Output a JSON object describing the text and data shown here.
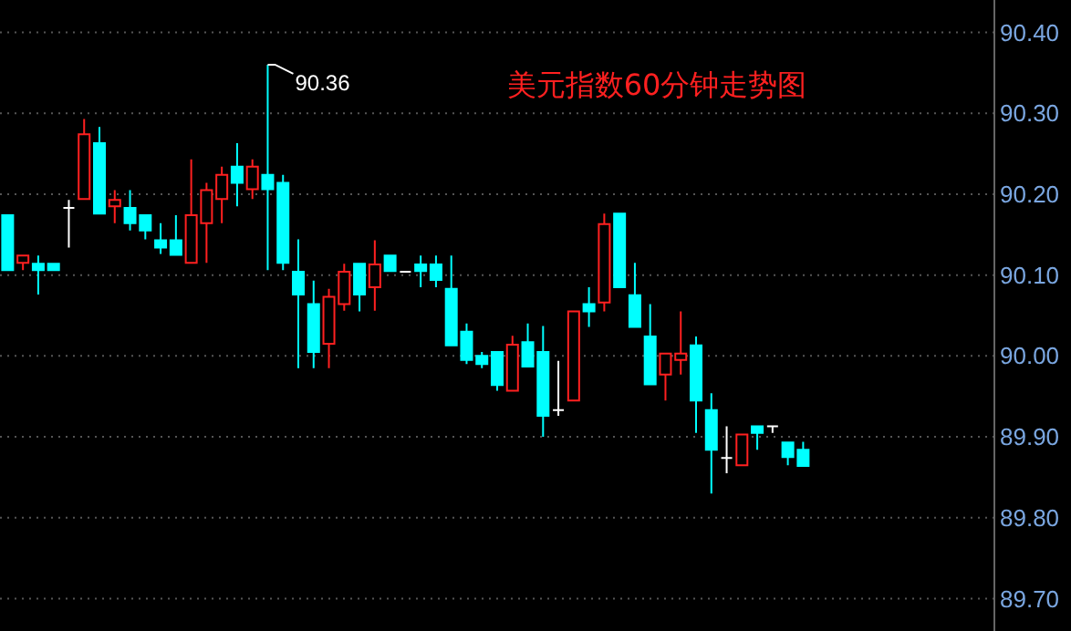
{
  "chart_data": {
    "type": "candlestick",
    "title": "美元指数60分钟走势图",
    "categories": [
      null,
      null,
      null,
      null,
      null,
      null,
      null,
      null,
      null,
      null,
      null,
      null,
      null,
      null,
      null,
      null,
      null,
      null,
      null,
      null,
      null,
      null,
      null,
      null,
      null,
      null,
      null,
      null,
      null,
      null,
      null,
      null,
      null,
      null,
      null,
      null,
      null,
      null,
      null,
      null,
      null,
      null,
      null,
      null,
      null,
      null,
      null,
      null,
      null,
      null,
      null,
      null,
      null,
      null,
      null,
      null,
      null,
      null,
      null,
      null,
      null,
      null,
      null,
      null,
      null
    ],
    "colors": [
      "#00ffff",
      "#ff2020",
      "#00ffff",
      "#00ffff",
      "#ffffff",
      "#ff2020",
      "#00ffff",
      "#ff2020",
      "#00ffff",
      "#00ffff",
      "#00ffff",
      "#00ffff",
      "#ff2020",
      "#ff2020",
      "#ff2020",
      "#00ffff",
      "#ff2020",
      "#00ffff",
      "#00ffff",
      "#00ffff",
      "#00ffff",
      "#ff2020",
      "#ff2020",
      "#00ffff",
      "#ff2020",
      "#00ffff",
      "#ffffff",
      "#00ffff",
      "#00ffff",
      "#00ffff",
      "#00ffff",
      "#00ffff",
      "#00ffff",
      "#ff2020",
      "#00ffff",
      "#00ffff",
      "#ffffff",
      "#ff2020",
      "#00ffff",
      "#ff2020",
      "#00ffff",
      "#00ffff",
      "#00ffff",
      "#ff2020",
      "#ff2020",
      "#00ffff",
      "#00ffff",
      "#ffffff",
      "#ff2020",
      "#00ffff",
      "#ffffff",
      "#00ffff",
      "#00ffff",
      null,
      null,
      null,
      null,
      null,
      null,
      null,
      null,
      null,
      null,
      null,
      null
    ],
    "ohlc": [
      [
        90.174,
        90.174,
        90.106,
        90.106
      ],
      [
        90.115,
        90.124,
        90.106,
        90.124
      ],
      [
        90.114,
        90.124,
        90.076,
        90.106
      ],
      [
        90.114,
        90.114,
        90.106,
        90.106
      ],
      [
        90.183,
        90.193,
        90.134,
        90.183
      ],
      [
        90.194,
        90.293,
        90.194,
        90.274
      ],
      [
        90.263,
        90.283,
        90.176,
        90.176
      ],
      [
        90.185,
        90.205,
        90.164,
        90.193
      ],
      [
        90.183,
        90.205,
        90.155,
        90.164
      ],
      [
        90.174,
        90.174,
        90.144,
        90.155
      ],
      [
        90.143,
        90.164,
        90.126,
        90.134
      ],
      [
        90.143,
        90.174,
        90.125,
        90.125
      ],
      [
        90.115,
        90.243,
        90.115,
        90.174
      ],
      [
        90.164,
        90.214,
        90.115,
        90.205
      ],
      [
        90.194,
        90.234,
        90.164,
        90.224
      ],
      [
        90.234,
        90.263,
        90.185,
        90.214
      ],
      [
        90.206,
        90.243,
        90.194,
        90.234
      ],
      [
        90.224,
        90.36,
        90.106,
        90.206
      ],
      [
        90.214,
        90.224,
        90.106,
        90.115
      ],
      [
        90.104,
        90.144,
        89.985,
        90.076
      ],
      [
        90.064,
        90.093,
        89.985,
        90.005
      ],
      [
        90.015,
        90.083,
        89.985,
        90.073
      ],
      [
        90.064,
        90.114,
        90.056,
        90.104
      ],
      [
        90.114,
        90.114,
        90.055,
        90.076
      ],
      [
        90.085,
        90.143,
        90.056,
        90.113
      ],
      [
        90.124,
        90.124,
        90.105,
        90.105
      ],
      [
        90.104,
        90.104,
        90.104,
        90.104
      ],
      [
        90.113,
        90.124,
        90.085,
        90.105
      ],
      [
        90.113,
        90.124,
        90.085,
        90.094
      ],
      [
        90.083,
        90.124,
        90.013,
        90.013
      ],
      [
        90.03,
        90.04,
        89.99,
        89.995
      ],
      [
        90.0,
        90.005,
        89.985,
        89.99
      ],
      [
        90.005,
        90.005,
        89.957,
        89.964
      ],
      [
        89.957,
        90.025,
        89.957,
        90.014
      ],
      [
        90.017,
        90.04,
        89.987,
        89.987
      ],
      [
        90.005,
        90.037,
        89.9,
        89.926
      ],
      [
        89.933,
        89.994,
        89.926,
        89.933
      ],
      [
        89.945,
        90.055,
        89.945,
        90.055
      ],
      [
        90.064,
        90.085,
        90.036,
        90.055
      ],
      [
        90.066,
        90.176,
        90.055,
        90.163
      ],
      [
        90.176,
        90.176,
        90.085,
        90.085
      ],
      [
        90.075,
        90.115,
        90.036,
        90.036
      ],
      [
        90.024,
        90.064,
        89.965,
        89.965
      ],
      [
        89.977,
        90.003,
        89.945,
        90.003
      ],
      [
        89.995,
        90.055,
        89.977,
        90.003
      ],
      [
        90.013,
        90.024,
        89.905,
        89.945
      ],
      [
        89.933,
        89.954,
        89.83,
        89.884
      ],
      [
        89.874,
        89.913,
        89.855,
        89.874
      ],
      [
        89.865,
        89.903,
        89.865,
        89.903
      ],
      [
        89.913,
        89.913,
        89.884,
        89.905
      ],
      [
        89.913,
        89.913,
        89.905,
        89.913
      ],
      [
        89.893,
        89.893,
        89.865,
        89.875
      ],
      [
        89.884,
        89.894,
        89.864,
        89.864
      ],
      null,
      null,
      null,
      null,
      null,
      null,
      null,
      null,
      null,
      null,
      null,
      null
    ],
    "annotations": [
      "90.36"
    ],
    "ylim": [
      89.66,
      90.44
    ],
    "yticks": [
      {
        "value": 89.7,
        "label": "89.70"
      },
      {
        "value": 89.8,
        "label": "89.80"
      },
      {
        "value": 89.9,
        "label": "89.90"
      },
      {
        "value": 90.0,
        "label": "90.00"
      },
      {
        "value": 90.1,
        "label": "90.10"
      },
      {
        "value": 90.2,
        "label": "90.20"
      },
      {
        "value": 90.3,
        "label": "90.30"
      },
      {
        "value": 90.4,
        "label": "90.40"
      }
    ],
    "grid": "y"
  }
}
